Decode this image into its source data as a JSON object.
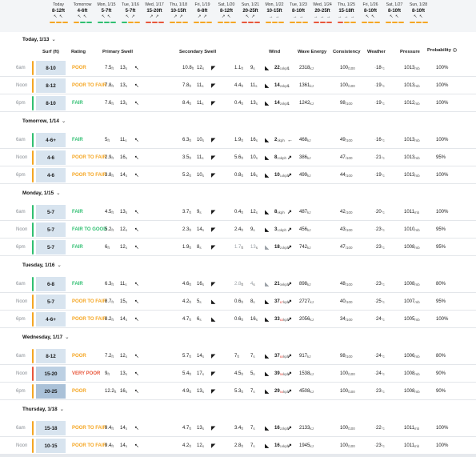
{
  "strip": [
    {
      "day": "Today",
      "surf": "8-12ft",
      "arrows": "↖ ↖",
      "colors": [
        "#f5a623",
        "#f5a623",
        "#f5a623"
      ]
    },
    {
      "day": "Tomorrow",
      "surf": "4-6ft",
      "arrows": "↖ ↖",
      "colors": [
        "#f5a623",
        "#2fbf71",
        "#2fbf71"
      ]
    },
    {
      "day": "Mon, 1/15",
      "surf": "5-7ft",
      "arrows": "↖ ↖",
      "colors": [
        "#2fbf71",
        "#2fbf71",
        "#2fbf71"
      ]
    },
    {
      "day": "Tue, 1/16",
      "surf": "5-7ft",
      "arrows": "↖ ↗",
      "colors": [
        "#2fbf71",
        "#f5a623",
        "#f5a623"
      ]
    },
    {
      "day": "Wed, 1/17",
      "surf": "15-20ft",
      "arrows": "↗ ↗",
      "colors": [
        "#e8563a",
        "#e8563a",
        "#e8563a"
      ]
    },
    {
      "day": "Thu, 1/18",
      "surf": "10-15ft",
      "arrows": "↗ ↗",
      "colors": [
        "#f5a623",
        "#f5a623",
        "#f5a623"
      ]
    },
    {
      "day": "Fri, 1/19",
      "surf": "6-8ft",
      "arrows": "↗ ↗",
      "colors": [
        "#f5a623",
        "#f5a623",
        "#f5a623"
      ]
    },
    {
      "day": "Sat, 1/20",
      "surf": "8-12ft",
      "arrows": "↗ ↖",
      "colors": [
        "#f5a623",
        "#f5a623",
        "#f5a623"
      ]
    },
    {
      "day": "Sun, 1/21",
      "surf": "20-25ft",
      "arrows": "↖ ↗",
      "colors": [
        "#e8563a",
        "#e8563a",
        "#e8563a"
      ]
    },
    {
      "day": "Mon, 1/22",
      "surf": "10-15ft",
      "arrows": "→ →",
      "colors": [
        "#f5a623",
        "#f5a623",
        "#f5a623"
      ]
    },
    {
      "day": "Tue, 1/23",
      "surf": "8-10ft",
      "arrows": "→ →",
      "colors": [
        "#f5a623",
        "#f5a623",
        "#f5a623"
      ]
    },
    {
      "day": "Wed, 1/24",
      "surf": "20-25ft",
      "arrows": "→ → →",
      "colors": [
        "#e8563a",
        "#e8563a",
        "#e8563a"
      ]
    },
    {
      "day": "Thu, 1/25",
      "surf": "15-18ft",
      "arrows": "→ → →",
      "colors": [
        "#e8563a",
        "#f5a623",
        "#f5a623"
      ]
    },
    {
      "day": "Fri, 1/26",
      "surf": "8-10ft",
      "arrows": "↖ ↖",
      "colors": [
        "#f5a623",
        "#f5a623",
        "#f5a623"
      ]
    },
    {
      "day": "Sat, 1/27",
      "surf": "8-10ft",
      "arrows": "↖ ↖",
      "colors": [
        "#f5a623",
        "#f5a623",
        "#f5a623"
      ]
    },
    {
      "day": "Sun, 1/28",
      "surf": "8-10ft",
      "arrows": "↖ ↖",
      "colors": [
        "#f5a623",
        "#f5a623",
        "#f5a623"
      ]
    }
  ],
  "columns": {
    "surf": "Surf (ft)",
    "rating": "Rating",
    "primary": "Primary Swell",
    "secondary": "Secondary Swell",
    "wind": "Wind",
    "energy": "Wave Energy",
    "consistency": "Consistency",
    "weather": "Weather",
    "pressure": "Pressure",
    "probability": "Probability"
  },
  "units": {
    "ft": "ft",
    "s": "s",
    "kph": "kph",
    "kj": "kJ",
    "cons": "/100",
    "c": "°c",
    "mb": "mb"
  },
  "colors": {
    "poor": "#f5a623",
    "fair": "#2fbf71",
    "verypoor": "#e8563a"
  },
  "sections": [
    {
      "title": "Today, 1/13",
      "rows": [
        {
          "time": "6am",
          "surf": "8-10",
          "rating": "POOR",
          "rc": "poor",
          "p": [
            "7.5",
            "13",
            "↖"
          ],
          "s": [
            "10.8",
            "12",
            "◤"
          ],
          "t": [
            "1.1",
            "9",
            "◣"
          ],
          "wind": [
            "22",
            "15",
            "↓"
          ],
          "energy": "2318",
          "cons": "100",
          "wx": "18",
          "press": "1013",
          "prob": "100%"
        },
        {
          "time": "Noon",
          "surf": "8-12",
          "rating": "POOR TO FAIR",
          "rc": "poor",
          "p": [
            "7.8",
            "13",
            "↖"
          ],
          "s": [
            "7.8",
            "11",
            "◤"
          ],
          "t": [
            "4.4",
            "11",
            "◣"
          ],
          "wind": [
            "14",
            "20",
            "↓"
          ],
          "energy": "1361",
          "cons": "100",
          "wx": "19",
          "press": "1013",
          "prob": "100%"
        },
        {
          "time": "6pm",
          "surf": "8-10",
          "rating": "FAIR",
          "rc": "fair",
          "p": [
            "7.6",
            "13",
            "↖"
          ],
          "s": [
            "8.4",
            "11",
            "◤"
          ],
          "t": [
            "0.4",
            "13",
            "◣"
          ],
          "wind": [
            "14",
            "20",
            "↓"
          ],
          "energy": "1242",
          "cons": "98",
          "wx": "19",
          "press": "1012",
          "prob": "100%"
        }
      ]
    },
    {
      "title": "Tomorrow, 1/14",
      "rows": [
        {
          "time": "6am",
          "surf": "4-6+",
          "rating": "FAIR",
          "rc": "fair",
          "p": [
            "5",
            "11",
            "↖"
          ],
          "s": [
            "6.3",
            "10",
            "◤"
          ],
          "t": [
            "1.9",
            "16",
            "◣"
          ],
          "wind": [
            "2",
            "3",
            "←"
          ],
          "energy": "468",
          "cons": "49",
          "wx": "16",
          "press": "1013",
          "prob": "100%"
        },
        {
          "time": "Noon",
          "surf": "4-6",
          "rating": "POOR TO FAIR",
          "rc": "poor",
          "p": [
            "2.9",
            "16",
            "↖"
          ],
          "s": [
            "3.5",
            "11",
            "◤"
          ],
          "t": [
            "5.6",
            "10",
            "◣"
          ],
          "wind": [
            "8",
            "20",
            "↗"
          ],
          "energy": "386",
          "cons": "47",
          "wx": "21",
          "press": "1013",
          "prob": "95%"
        },
        {
          "time": "6pm",
          "surf": "4-6",
          "rating": "POOR TO FAIR",
          "rc": "poor",
          "p": [
            "3.8",
            "14",
            "↖"
          ],
          "s": [
            "5.2",
            "10",
            "◤"
          ],
          "t": [
            "0.8",
            "16",
            "◣"
          ],
          "wind": [
            "10",
            "14",
            "↗"
          ],
          "energy": "499",
          "cons": "44",
          "wx": "19",
          "press": "1013",
          "prob": "100%"
        }
      ]
    },
    {
      "title": "Monday, 1/15",
      "rows": [
        {
          "time": "6am",
          "surf": "5-7",
          "rating": "FAIR",
          "rc": "fair",
          "p": [
            "4.5",
            "13",
            "↖"
          ],
          "s": [
            "3.7",
            "9",
            "◤"
          ],
          "t": [
            "0.4",
            "12",
            "◣"
          ],
          "wind": [
            "8",
            "9",
            "↗"
          ],
          "energy": "487",
          "cons": "42",
          "wx": "20",
          "press": "1011",
          "prob": "100%"
        },
        {
          "time": "Noon",
          "surf": "5-7",
          "rating": "FAIR TO GOOD",
          "rc": "fair",
          "p": [
            "5.2",
            "12",
            "↖"
          ],
          "s": [
            "2.3",
            "14",
            "◤"
          ],
          "t": [
            "2.4",
            "9",
            "◣"
          ],
          "wind": [
            "3",
            "10",
            "↗"
          ],
          "energy": "456",
          "cons": "43",
          "wx": "23",
          "press": "1010",
          "prob": "95%"
        },
        {
          "time": "6pm",
          "surf": "5-7",
          "rating": "FAIR",
          "rc": "fair",
          "p": [
            "6",
            "12",
            "↖"
          ],
          "s": [
            "1.9",
            "8",
            "◤"
          ],
          "t": [
            "1.7",
            "13",
            "◣"
          ],
          "wind": [
            "18",
            "21",
            "↗"
          ],
          "energy": "742",
          "cons": "47",
          "wx": "23",
          "press": "1008",
          "prob": "95%"
        }
      ]
    },
    {
      "title": "Tuesday, 1/16",
      "rows": [
        {
          "time": "6am",
          "surf": "6-8",
          "rating": "FAIR",
          "rc": "fair",
          "p": [
            "6.3",
            "11",
            "↖"
          ],
          "s": [
            "4.6",
            "16",
            "◤"
          ],
          "t": [
            "2.8",
            "4",
            "◣"
          ],
          "wind": [
            "21",
            "39",
            "↗"
          ],
          "energy": "898",
          "cons": "48",
          "wx": "23",
          "press": "1008",
          "prob": "80%"
        },
        {
          "time": "Noon",
          "surf": "5-7",
          "rating": "POOR TO FAIR",
          "rc": "poor",
          "p": [
            "8.7",
            "15",
            "↖"
          ],
          "s": [
            "4.2",
            "5",
            "◣"
          ],
          "t": [
            "0.6",
            "8",
            "◣"
          ],
          "wind": [
            "37",
            "67",
            "↗"
          ],
          "energy": "2727",
          "cons": "40",
          "wx": "25",
          "press": "1007",
          "prob": "95%"
        },
        {
          "time": "6pm",
          "surf": "4-6+",
          "rating": "POOR TO FAIR",
          "rc": "poor",
          "p": [
            "8.2",
            "14",
            "↖"
          ],
          "s": [
            "4.7",
            "6",
            "◣"
          ],
          "t": [
            "0.6",
            "16",
            "◣"
          ],
          "wind": [
            "33",
            "63",
            "↗"
          ],
          "energy": "2056",
          "cons": "34",
          "wx": "24",
          "press": "1005",
          "prob": "100%"
        }
      ]
    },
    {
      "title": "Wednesday, 1/17",
      "rows": [
        {
          "time": "6am",
          "surf": "8-12",
          "rating": "POOR",
          "rc": "poor",
          "p": [
            "7.2",
            "12",
            "↖"
          ],
          "s": [
            "5.7",
            "14",
            "◤"
          ],
          "t": [
            "7",
            "7",
            "◣"
          ],
          "wind": [
            "37",
            "60",
            "↗"
          ],
          "energy": "917",
          "cons": "98",
          "wx": "24",
          "press": "1006",
          "prob": "80%"
        },
        {
          "time": "Noon",
          "surf": "15-20",
          "rating": "VERY POOR",
          "rc": "verypoor",
          "p": [
            "9",
            "13",
            "↖"
          ],
          "s": [
            "5.4",
            "17",
            "◤"
          ],
          "t": [
            "4.5",
            "5",
            "◣"
          ],
          "wind": [
            "39",
            "59",
            "↗"
          ],
          "energy": "1538",
          "cons": "100",
          "wx": "24",
          "press": "1008",
          "prob": "90%"
        },
        {
          "time": "6pm",
          "surf": "20-25",
          "rating": "POOR",
          "rc": "poor",
          "p": [
            "12.2",
            "16",
            "↖"
          ],
          "s": [
            "4.9",
            "13",
            "◤"
          ],
          "t": [
            "5.3",
            "7",
            "◣"
          ],
          "wind": [
            "29",
            "54",
            "↗"
          ],
          "energy": "4508",
          "cons": "100",
          "wx": "23",
          "press": "1008",
          "prob": "90%"
        }
      ]
    },
    {
      "title": "Thursday, 1/18",
      "rows": [
        {
          "time": "6am",
          "surf": "15-18",
          "rating": "POOR TO FAIR",
          "rc": "poor",
          "p": [
            "9.4",
            "14",
            "↖"
          ],
          "s": [
            "4.7",
            "13",
            "◤"
          ],
          "t": [
            "3.4",
            "7",
            "◣"
          ],
          "wind": [
            "16",
            "22",
            "↗"
          ],
          "energy": "2133",
          "cons": "100",
          "wx": "22",
          "press": "1011",
          "prob": "100%"
        },
        {
          "time": "Noon",
          "surf": "10-15",
          "rating": "POOR TO FAIR",
          "rc": "poor",
          "p": [
            "9.4",
            "14",
            "↖"
          ],
          "s": [
            "4.2",
            "12",
            "◤"
          ],
          "t": [
            "2.8",
            "7",
            "◣"
          ],
          "wind": [
            "16",
            "19",
            "↗"
          ],
          "energy": "1945",
          "cons": "100",
          "wx": "23",
          "press": "1011",
          "prob": "100%"
        },
        {
          "time": "6pm",
          "surf": "10-15",
          "rating": "POOR TO FAIR",
          "rc": "poor",
          "p": [
            "9.3",
            "13",
            "↖"
          ],
          "s": [
            "3.6",
            "12",
            "◤"
          ],
          "t": [
            "2.3",
            "8",
            "◣"
          ],
          "wind": [
            "13",
            "14",
            "↗"
          ],
          "energy": "1699",
          "cons": "100",
          "wx": "23",
          "press": "1011",
          "prob": "100%"
        }
      ]
    }
  ]
}
